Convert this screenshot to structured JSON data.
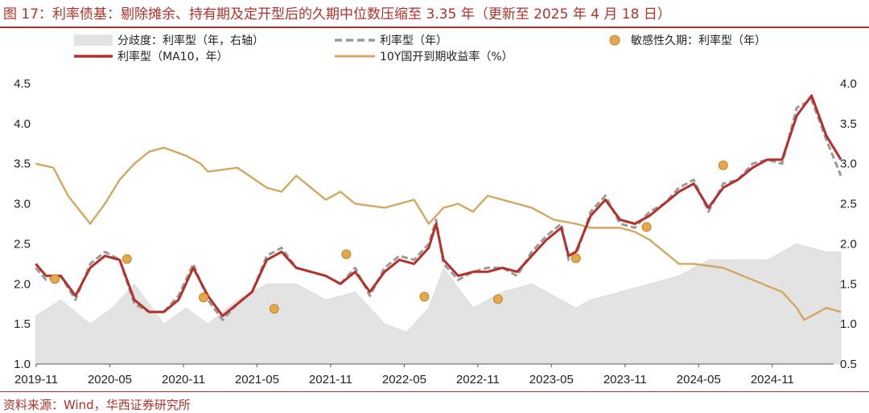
{
  "figure": {
    "title": "图 17：利率债基：剔除摊余、持有期及定开型后的久期中位数压缩至 3.35 年（更新至 2025 年 4 月 18 日）",
    "source": "资料来源：Wind，华西证券研究所"
  },
  "colors": {
    "title": "#b5302a",
    "area": "#e3e3e3",
    "dashed": "#9a9a9a",
    "ma10": "#b5302a",
    "yield": "#d3a760",
    "scatter": "#e4a84a"
  },
  "chart_data": {
    "type": "line",
    "x_ticks": [
      "2019-11",
      "2020-05",
      "2020-11",
      "2021-05",
      "2021-11",
      "2022-05",
      "2022-11",
      "2023-05",
      "2023-11",
      "2024-05",
      "2024-11"
    ],
    "x_range": [
      "2019-11",
      "2025-04"
    ],
    "y_left": {
      "range": [
        1.0,
        4.5
      ],
      "ticks": [
        "1.0",
        "1.5",
        "2.0",
        "2.5",
        "3.0",
        "3.5",
        "4.0",
        "4.5"
      ]
    },
    "y_right": {
      "range": [
        0.5,
        4.0
      ],
      "ticks": [
        "0.5",
        "1.0",
        "1.5",
        "2.0",
        "2.5",
        "3.0",
        "3.5",
        "4.0"
      ]
    },
    "series": [
      {
        "name": "分歧度：利率型（年，右轴）",
        "kind": "area",
        "axis": "right",
        "x": [
          2019.83,
          2020.0,
          2020.2,
          2020.35,
          2020.5,
          2020.7,
          2020.85,
          2021.0,
          2021.2,
          2021.4,
          2021.6,
          2021.8,
          2022.0,
          2022.2,
          2022.35,
          2022.5,
          2022.6,
          2022.8,
          2023.0,
          2023.2,
          2023.4,
          2023.5,
          2023.6,
          2023.8,
          2024.0,
          2024.2,
          2024.4,
          2024.6,
          2024.8,
          2025.0,
          2025.2,
          2025.3
        ],
        "y": [
          1.1,
          1.3,
          1.0,
          1.2,
          1.5,
          1.0,
          1.2,
          1.0,
          1.3,
          1.5,
          1.5,
          1.3,
          1.4,
          1.0,
          0.9,
          1.2,
          1.7,
          1.2,
          1.4,
          1.5,
          1.3,
          1.2,
          1.3,
          1.4,
          1.5,
          1.6,
          1.8,
          1.8,
          1.8,
          2.0,
          1.9,
          1.9
        ]
      },
      {
        "name": "利率型（年）",
        "kind": "dashed",
        "axis": "left",
        "x": [
          2019.83,
          2019.9,
          2020.0,
          2020.1,
          2020.2,
          2020.3,
          2020.4,
          2020.5,
          2020.6,
          2020.7,
          2020.8,
          2020.9,
          2021.0,
          2021.1,
          2021.2,
          2021.3,
          2021.4,
          2021.5,
          2021.6,
          2021.7,
          2021.8,
          2021.9,
          2022.0,
          2022.1,
          2022.2,
          2022.3,
          2022.4,
          2022.5,
          2022.55,
          2022.6,
          2022.7,
          2022.8,
          2022.9,
          2023.0,
          2023.1,
          2023.2,
          2023.3,
          2023.4,
          2023.45,
          2023.5,
          2023.6,
          2023.7,
          2023.8,
          2023.9,
          2024.0,
          2024.1,
          2024.2,
          2024.3,
          2024.4,
          2024.5,
          2024.6,
          2024.7,
          2024.8,
          2024.9,
          2025.0,
          2025.1,
          2025.2,
          2025.3
        ],
        "y": [
          2.2,
          2.05,
          2.1,
          1.8,
          2.25,
          2.4,
          2.3,
          1.75,
          1.65,
          1.65,
          1.85,
          2.25,
          1.8,
          1.55,
          1.75,
          1.9,
          2.35,
          2.45,
          2.2,
          2.15,
          2.1,
          2.0,
          2.2,
          1.85,
          2.2,
          2.35,
          2.3,
          2.5,
          2.8,
          2.25,
          2.05,
          2.15,
          2.2,
          2.2,
          2.1,
          2.4,
          2.6,
          2.75,
          2.3,
          2.35,
          2.9,
          3.1,
          2.75,
          2.7,
          2.9,
          3.0,
          3.2,
          3.3,
          2.9,
          3.25,
          3.3,
          3.5,
          3.55,
          3.5,
          4.2,
          4.3,
          3.8,
          3.35
        ]
      },
      {
        "name": "利率型（MA10，年）",
        "kind": "line",
        "axis": "left",
        "x": [
          2019.83,
          2019.9,
          2020.0,
          2020.1,
          2020.2,
          2020.3,
          2020.4,
          2020.5,
          2020.6,
          2020.7,
          2020.8,
          2020.9,
          2021.0,
          2021.1,
          2021.2,
          2021.3,
          2021.4,
          2021.5,
          2021.6,
          2021.7,
          2021.8,
          2021.9,
          2022.0,
          2022.1,
          2022.2,
          2022.3,
          2022.4,
          2022.5,
          2022.55,
          2022.6,
          2022.7,
          2022.8,
          2022.9,
          2023.0,
          2023.1,
          2023.2,
          2023.3,
          2023.4,
          2023.45,
          2023.5,
          2023.6,
          2023.7,
          2023.8,
          2023.9,
          2024.0,
          2024.1,
          2024.2,
          2024.3,
          2024.4,
          2024.5,
          2024.6,
          2024.7,
          2024.8,
          2024.9,
          2025.0,
          2025.1,
          2025.2,
          2025.3
        ],
        "y": [
          2.25,
          2.1,
          2.1,
          1.85,
          2.2,
          2.35,
          2.3,
          1.8,
          1.65,
          1.65,
          1.8,
          2.2,
          1.85,
          1.6,
          1.75,
          1.9,
          2.3,
          2.4,
          2.2,
          2.15,
          2.1,
          2.0,
          2.15,
          1.9,
          2.15,
          2.3,
          2.25,
          2.45,
          2.75,
          2.3,
          2.1,
          2.15,
          2.15,
          2.2,
          2.15,
          2.35,
          2.55,
          2.7,
          2.35,
          2.4,
          2.85,
          3.05,
          2.8,
          2.75,
          2.85,
          3.0,
          3.15,
          3.25,
          2.95,
          3.2,
          3.3,
          3.45,
          3.55,
          3.55,
          4.1,
          4.35,
          3.85,
          3.55
        ]
      },
      {
        "name": "10Y国开到期收益率（%）",
        "kind": "line",
        "axis": "right",
        "x": [
          2019.83,
          2019.95,
          2020.05,
          2020.2,
          2020.3,
          2020.4,
          2020.5,
          2020.6,
          2020.7,
          2020.85,
          2020.95,
          2021.0,
          2021.2,
          2021.4,
          2021.5,
          2021.6,
          2021.8,
          2021.9,
          2022.0,
          2022.2,
          2022.4,
          2022.5,
          2022.6,
          2022.7,
          2022.8,
          2022.9,
          2023.0,
          2023.2,
          2023.35,
          2023.5,
          2023.6,
          2023.8,
          2023.9,
          2024.0,
          2024.2,
          2024.3,
          2024.5,
          2024.7,
          2024.9,
          2025.0,
          2025.05,
          2025.2,
          2025.3
        ],
        "y": [
          3.0,
          2.95,
          2.6,
          2.25,
          2.5,
          2.8,
          3.0,
          3.15,
          3.2,
          3.1,
          3.0,
          2.9,
          2.95,
          2.7,
          2.65,
          2.85,
          2.55,
          2.65,
          2.5,
          2.45,
          2.55,
          2.25,
          2.45,
          2.5,
          2.4,
          2.6,
          2.55,
          2.45,
          2.3,
          2.25,
          2.2,
          2.2,
          2.15,
          2.05,
          1.75,
          1.75,
          1.7,
          1.55,
          1.4,
          1.2,
          1.05,
          1.2,
          1.15
        ]
      },
      {
        "name": "敏感性久期：利率型（年）",
        "kind": "scatter",
        "axis": "left",
        "x": [
          2019.96,
          2020.45,
          2020.97,
          2021.45,
          2021.94,
          2022.47,
          2022.97,
          2023.5,
          2023.98,
          2024.5
        ],
        "y": [
          2.06,
          2.31,
          1.83,
          1.69,
          2.37,
          1.84,
          1.81,
          2.32,
          2.71,
          3.48
        ]
      }
    ],
    "legend_position": "top",
    "grid": false
  }
}
